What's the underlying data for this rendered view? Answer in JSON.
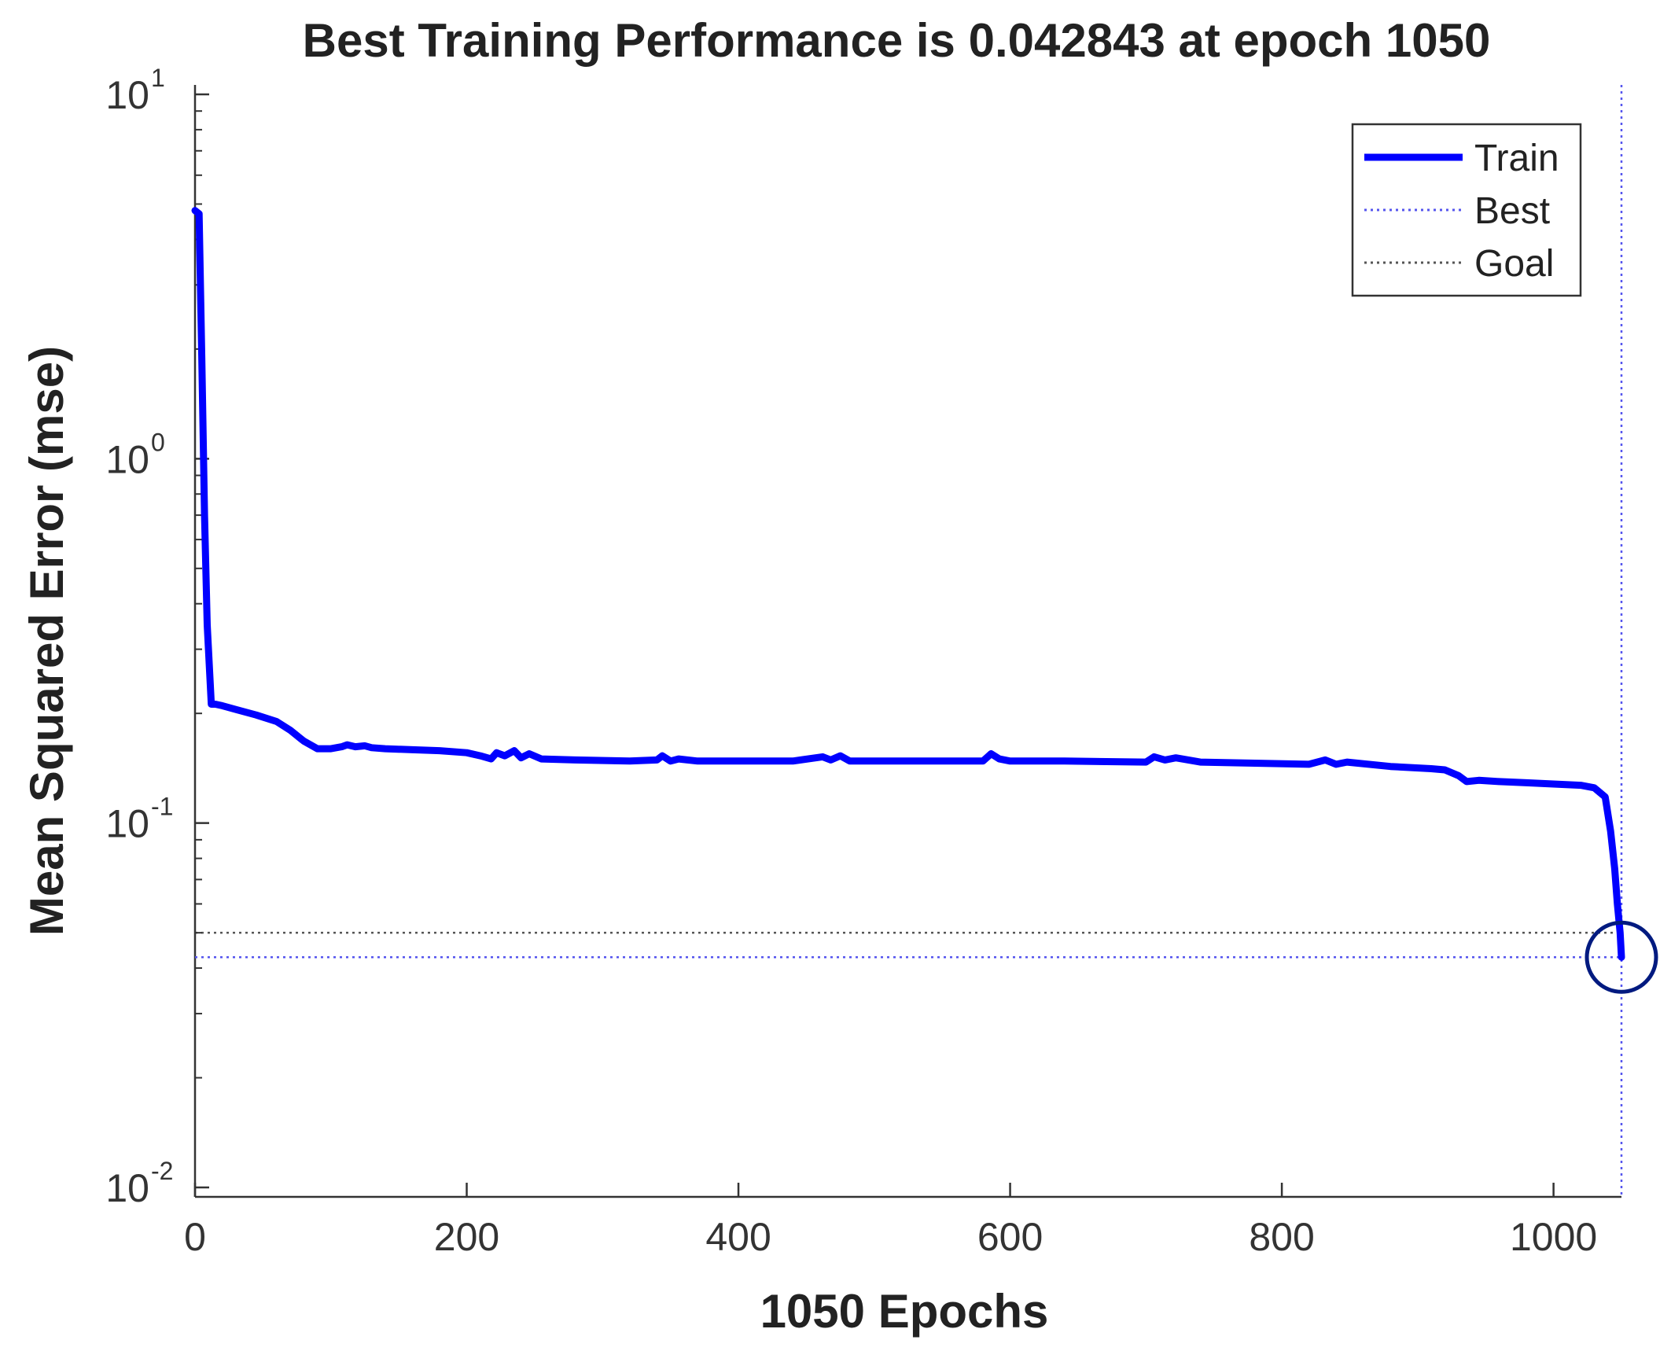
{
  "chart_data": {
    "type": "line",
    "title": "Best Training Performance is 0.042843 at epoch 1050",
    "xlabel": "1050 Epochs",
    "ylabel": "Mean Squared Error  (mse)",
    "xlim": [
      0,
      1050
    ],
    "ylim": [
      0.01,
      10
    ],
    "yscale": "log",
    "grid": false,
    "legend_position": "top-right",
    "x_ticks": [
      {
        "value": 0,
        "label": "0"
      },
      {
        "value": 200,
        "label": "200"
      },
      {
        "value": 400,
        "label": "400"
      },
      {
        "value": 600,
        "label": "600"
      },
      {
        "value": 800,
        "label": "800"
      },
      {
        "value": 1000,
        "label": "1000"
      }
    ],
    "y_ticks": [
      {
        "value": 10,
        "base": "10",
        "exp": "1"
      },
      {
        "value": 1,
        "base": "10",
        "exp": "0"
      },
      {
        "value": 0.1,
        "base": "10",
        "exp": "-1"
      },
      {
        "value": 0.01,
        "base": "10",
        "exp": "-2"
      }
    ],
    "series": [
      {
        "name": "Train",
        "color": "#0000ff",
        "style": "solid",
        "x": [
          0,
          3,
          5,
          7,
          9,
          12,
          15,
          20,
          30,
          45,
          60,
          70,
          80,
          90,
          100,
          108,
          112,
          118,
          125,
          130,
          140,
          160,
          180,
          200,
          210,
          218,
          222,
          228,
          235,
          240,
          246,
          255,
          280,
          320,
          340,
          344,
          350,
          356,
          370,
          400,
          440,
          462,
          468,
          475,
          482,
          500,
          540,
          580,
          586,
          592,
          600,
          640,
          700,
          706,
          714,
          722,
          740,
          780,
          820,
          832,
          840,
          848,
          880,
          910,
          920,
          930,
          936,
          945,
          960,
          980,
          1000,
          1020,
          1030,
          1038,
          1042,
          1045,
          1047,
          1049,
          1050
        ],
        "y": [
          4.8,
          4.7,
          1.9,
          0.7,
          0.35,
          0.212,
          0.212,
          0.21,
          0.205,
          0.198,
          0.19,
          0.18,
          0.168,
          0.16,
          0.16,
          0.162,
          0.164,
          0.162,
          0.163,
          0.161,
          0.16,
          0.159,
          0.158,
          0.156,
          0.153,
          0.15,
          0.156,
          0.153,
          0.158,
          0.151,
          0.155,
          0.15,
          0.149,
          0.148,
          0.149,
          0.153,
          0.148,
          0.15,
          0.148,
          0.148,
          0.148,
          0.152,
          0.149,
          0.153,
          0.148,
          0.148,
          0.148,
          0.148,
          0.155,
          0.15,
          0.148,
          0.148,
          0.147,
          0.152,
          0.149,
          0.151,
          0.147,
          0.146,
          0.145,
          0.149,
          0.145,
          0.147,
          0.143,
          0.141,
          0.14,
          0.135,
          0.13,
          0.131,
          0.13,
          0.129,
          0.128,
          0.127,
          0.125,
          0.118,
          0.095,
          0.075,
          0.06,
          0.05,
          0.042843
        ]
      },
      {
        "name": "Best",
        "color": "#5555ee",
        "style": "dotted",
        "y_value": 0.042843,
        "x_value": 1050
      },
      {
        "name": "Goal",
        "color": "#555555",
        "style": "dotted",
        "y_value": 0.05
      }
    ],
    "best_point": {
      "x": 1050,
      "y": 0.042843,
      "marker": "circle",
      "color": "#001a80"
    }
  }
}
